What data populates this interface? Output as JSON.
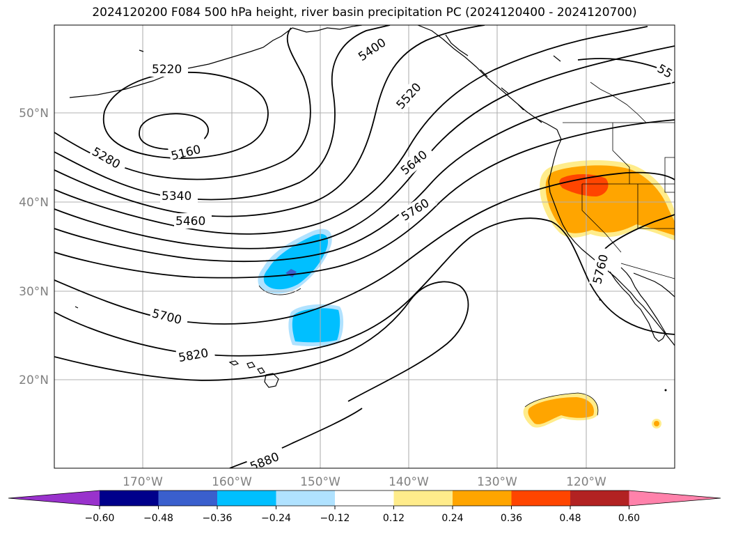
{
  "title": "2024120200 F084 500 hPa height, river basin precipitation PC (2024120400 - 2024120700)",
  "lat_labels": [
    "50°N",
    "40°N",
    "30°N",
    "20°N"
  ],
  "lon_labels": [
    "170°W",
    "160°W",
    "150°W",
    "140°W",
    "130°W",
    "120°W"
  ],
  "contour_labels": [
    "5220",
    "5160",
    "5280",
    "5340",
    "5460",
    "5400",
    "5520",
    "5640",
    "5760",
    "5700",
    "5820",
    "5880",
    "5760",
    "55"
  ],
  "colorbar": {
    "ticks": [
      "−0.60",
      "−0.48",
      "−0.36",
      "−0.24",
      "−0.12",
      "0.12",
      "0.24",
      "0.36",
      "0.48",
      "0.60"
    ],
    "colors": [
      "#9932cc",
      "#00008b",
      "#3a5fcd",
      "#00bfff",
      "#b0e2ff",
      "#ffffff",
      "#ffec8b",
      "#ffa500",
      "#ff4500",
      "#b22222",
      "#ff82ab"
    ]
  },
  "colors": {
    "negative_fill": "#00bfff",
    "negative_light": "#b0e2ff",
    "negative_core": "#3a5fcd",
    "positive_fill": "#ffa500",
    "positive_light": "#ffec8b",
    "positive_core": "#ff4500"
  }
}
